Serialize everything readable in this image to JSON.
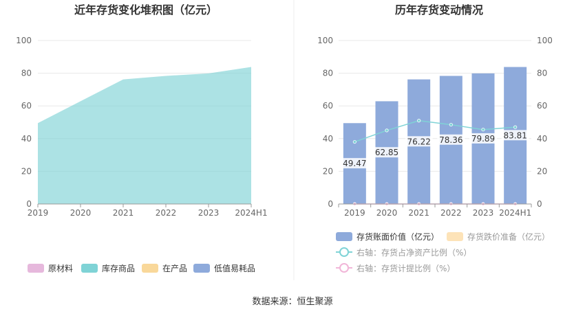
{
  "source_note": "数据来源：恒生聚源",
  "colors": {
    "raw_material": "#e6b8dc",
    "inventory_goods": "#7fd3d6",
    "wip": "#f9d89a",
    "low_value": "#8eaadb",
    "book_value": "#8eaadb",
    "impairment": "#fde3b8",
    "ratio_net_assets": "#7fd3d6",
    "ratio_provision": "#f1b6d8",
    "axis_text": "#666666",
    "grid": "#e8e8e8"
  },
  "chart_data": [
    {
      "type": "area",
      "title": "近年存货变化堆积图（亿元）",
      "categories": [
        "2019",
        "2020",
        "2021",
        "2022",
        "2023",
        "2024H1"
      ],
      "y_ticks": [
        "0",
        "20",
        "40",
        "60",
        "80",
        "100"
      ],
      "ylim": [
        0,
        100
      ],
      "series": [
        {
          "name": "原材料",
          "values": [
            0,
            0,
            0,
            0,
            0,
            0
          ]
        },
        {
          "name": "库存商品",
          "values": [
            49.47,
            62.85,
            76.22,
            78.36,
            79.89,
            83.81
          ]
        },
        {
          "name": "在产品",
          "values": [
            0,
            0,
            0,
            0,
            0,
            0
          ]
        },
        {
          "name": "低值易耗品",
          "values": [
            0,
            0,
            0,
            0,
            0,
            0
          ]
        }
      ],
      "legend": {
        "position": "bottom",
        "items": [
          "原材料",
          "库存商品",
          "在产品",
          "低值易耗品"
        ]
      }
    },
    {
      "type": "bar",
      "title": "历年存货变动情况",
      "categories": [
        "2019",
        "2020",
        "2021",
        "2022",
        "2023",
        "2024H1"
      ],
      "y_ticks_left": [
        "0",
        "20",
        "40",
        "60",
        "80",
        "100"
      ],
      "y_ticks_right": [
        "0",
        "20",
        "40",
        "60",
        "80",
        "100"
      ],
      "ylim": [
        0,
        100
      ],
      "ylim_right": [
        0,
        100
      ],
      "series": [
        {
          "name": "存货账面价值（亿元）",
          "type": "bar",
          "values": [
            49.47,
            62.85,
            76.22,
            78.36,
            79.89,
            83.81
          ],
          "labels": [
            "49.47",
            "62.85",
            "76.22",
            "78.36",
            "79.89",
            "83.81"
          ]
        },
        {
          "name": "存货跌价准备（亿元）",
          "type": "bar",
          "values": [
            0,
            0,
            0,
            0,
            0,
            0
          ]
        },
        {
          "name": "右轴：存货占净资产比例（%）",
          "type": "line",
          "axis": "right",
          "values": [
            38.0,
            45.0,
            51.0,
            48.5,
            45.5,
            47.0
          ]
        },
        {
          "name": "右轴：存货计提比例（%）",
          "type": "line",
          "axis": "right",
          "values": [
            0,
            0,
            0,
            0,
            0,
            0
          ]
        }
      ],
      "legend": {
        "position": "bottom",
        "items": [
          "存货账面价值（亿元）",
          "存货跌价准备（亿元）",
          "右轴：存货占净资产比例（%）",
          "右轴：存货计提比例（%）"
        ]
      }
    }
  ]
}
